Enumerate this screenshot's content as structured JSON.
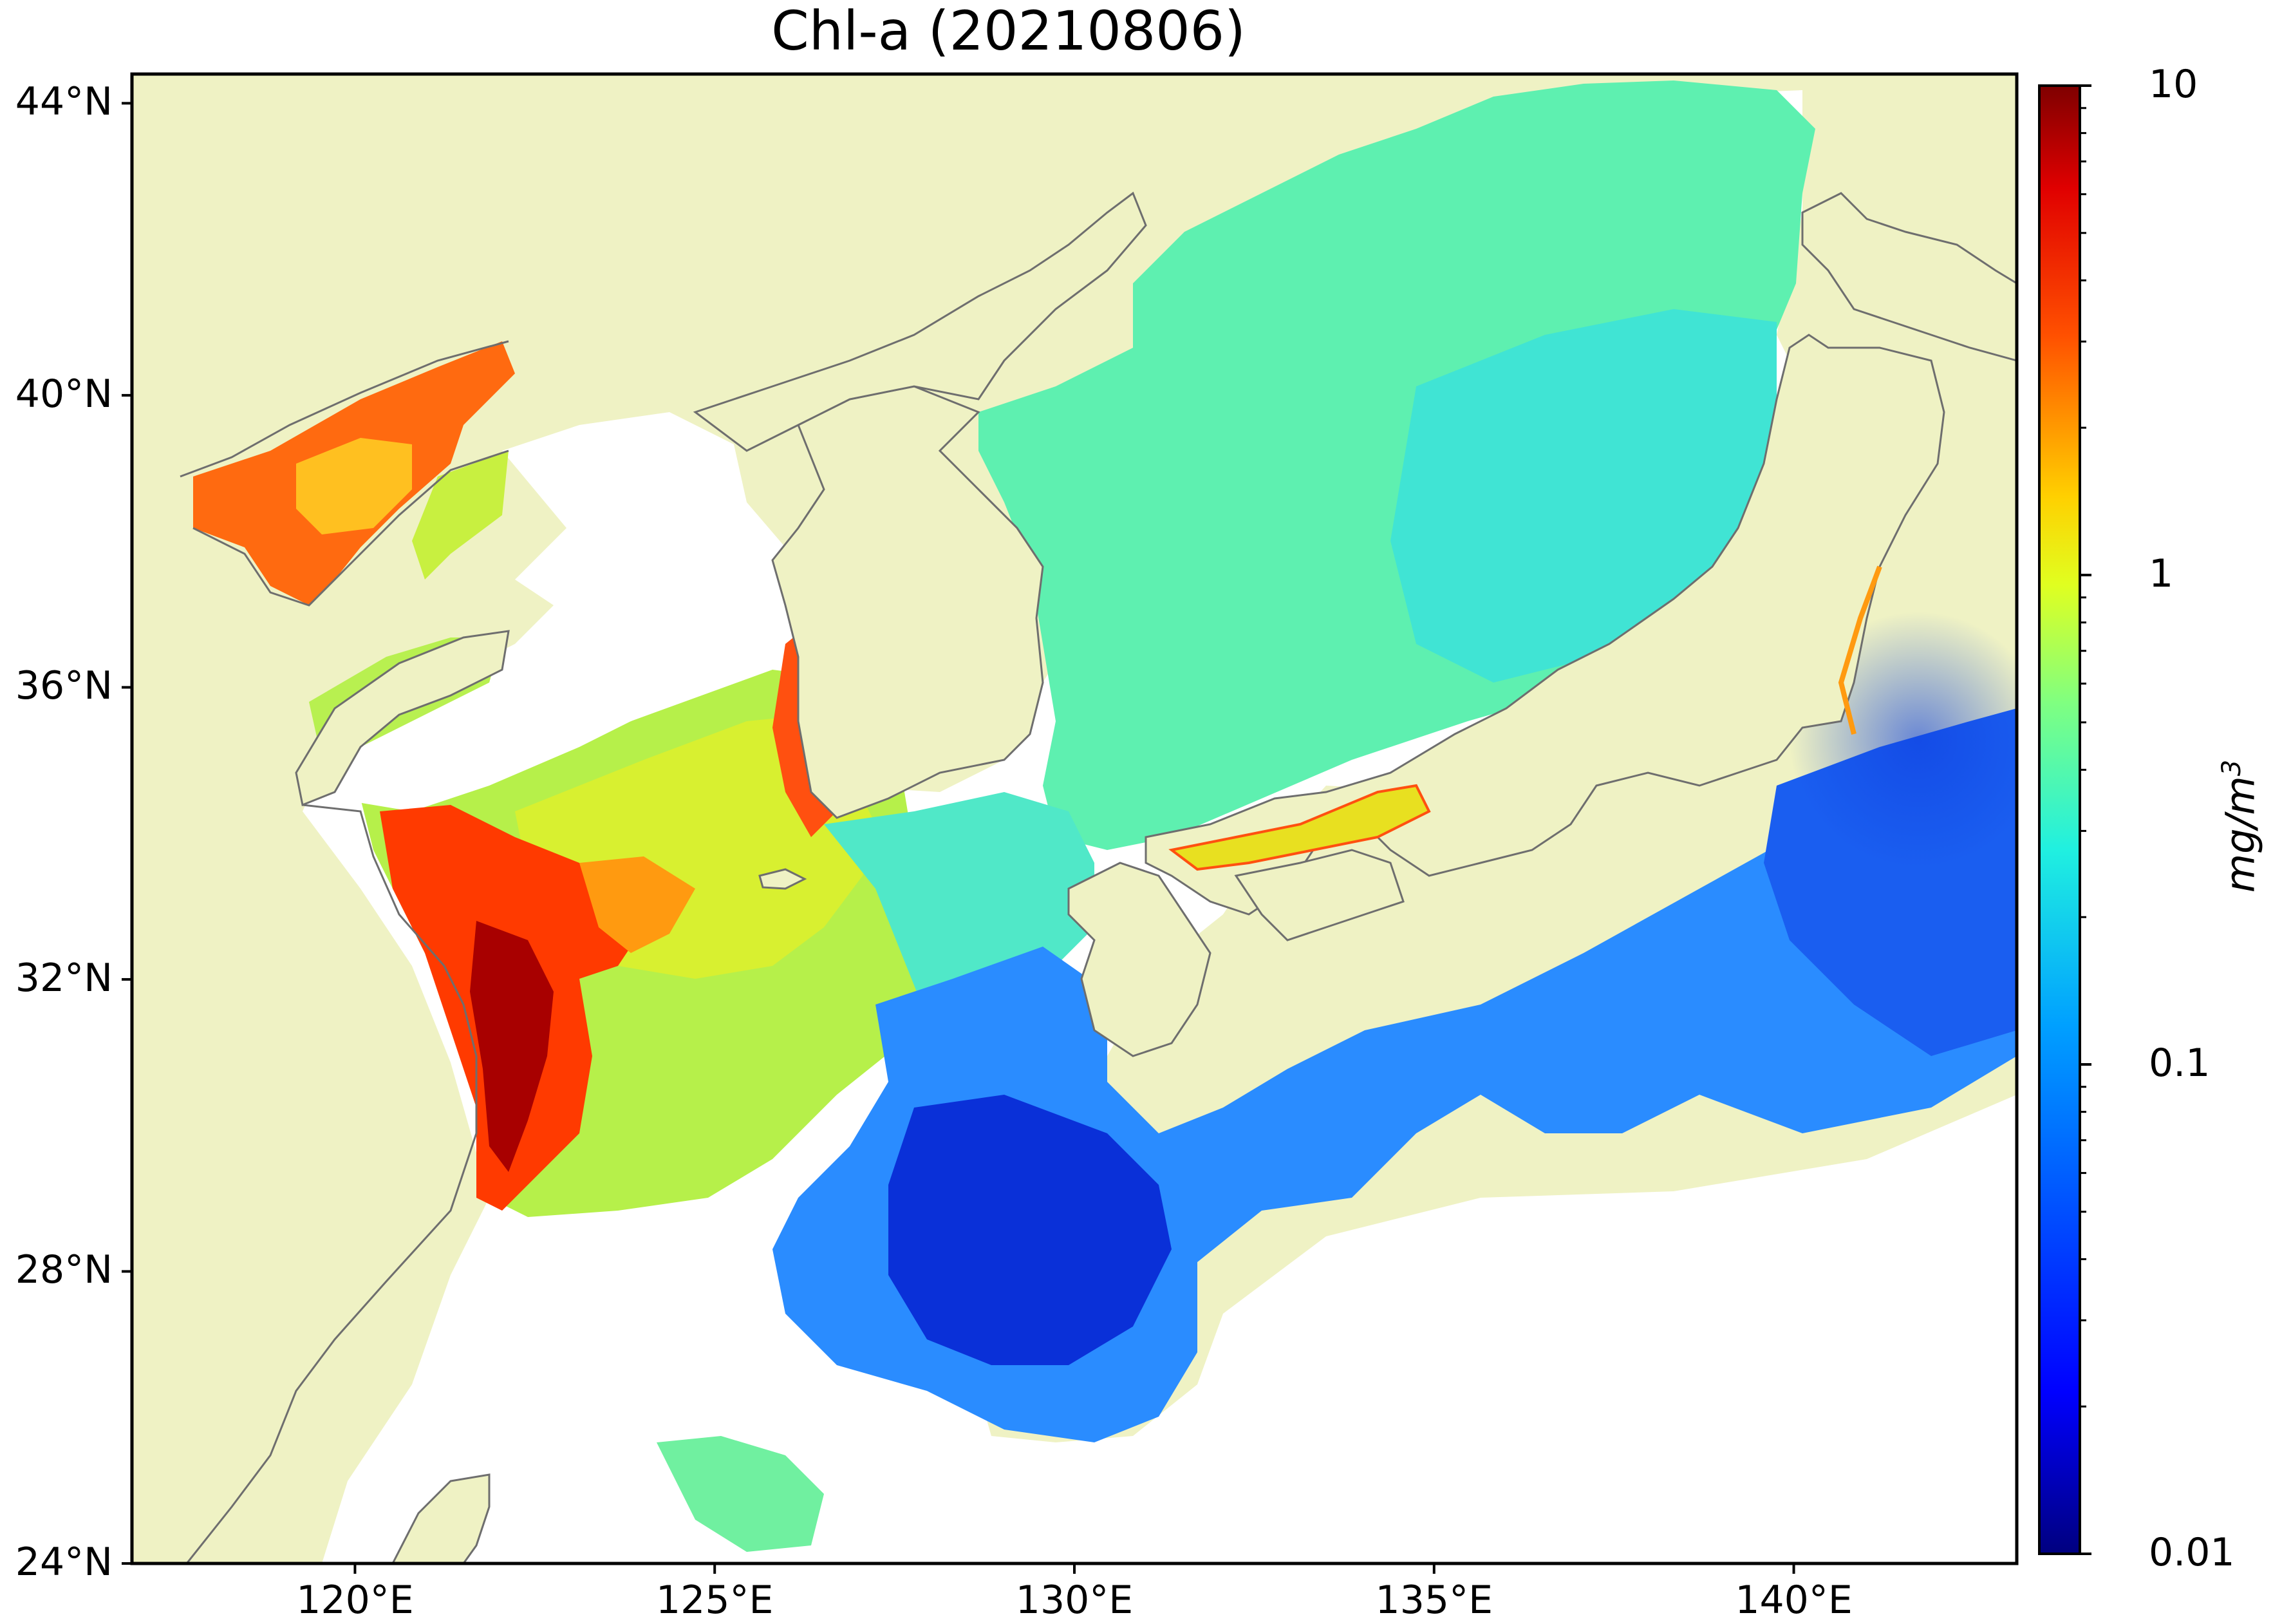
{
  "title": "Chl-a (20210806)",
  "latitude_ticks": [
    {
      "label": "44°N",
      "lat": 44
    },
    {
      "label": "40°N",
      "lat": 40
    },
    {
      "label": "36°N",
      "lat": 36
    },
    {
      "label": "32°N",
      "lat": 32
    },
    {
      "label": "28°N",
      "lat": 28
    },
    {
      "label": "24°N",
      "lat": 24
    }
  ],
  "longitude_ticks": [
    {
      "label": "120°E",
      "lon": 120
    },
    {
      "label": "125°E",
      "lon": 125
    },
    {
      "label": "130°E",
      "lon": 130
    },
    {
      "label": "135°E",
      "lon": 135
    },
    {
      "label": "140°E",
      "lon": 140
    }
  ],
  "map_extent": {
    "lon_min": 116.9,
    "lon_max": 143.1,
    "lat_min": 24.0,
    "lat_max": 44.4
  },
  "colorbar": {
    "scale": "log",
    "range": [
      0.01,
      10
    ],
    "tick_labels": [
      "10",
      "1",
      "0.1",
      "0.01"
    ],
    "unit_text": "mg/m",
    "unit_superscript": "3",
    "colormap": "jet",
    "colors": [
      "#00007f",
      "#0000ff",
      "#007fff",
      "#00ffff",
      "#7fff7f",
      "#ffff00",
      "#ff7f00",
      "#ff0000",
      "#7f0000"
    ]
  },
  "colors": {
    "land": "#eff2c4",
    "coastline": "#6e6e6e",
    "no_data": "#ffffff",
    "frame": "#000000"
  }
}
